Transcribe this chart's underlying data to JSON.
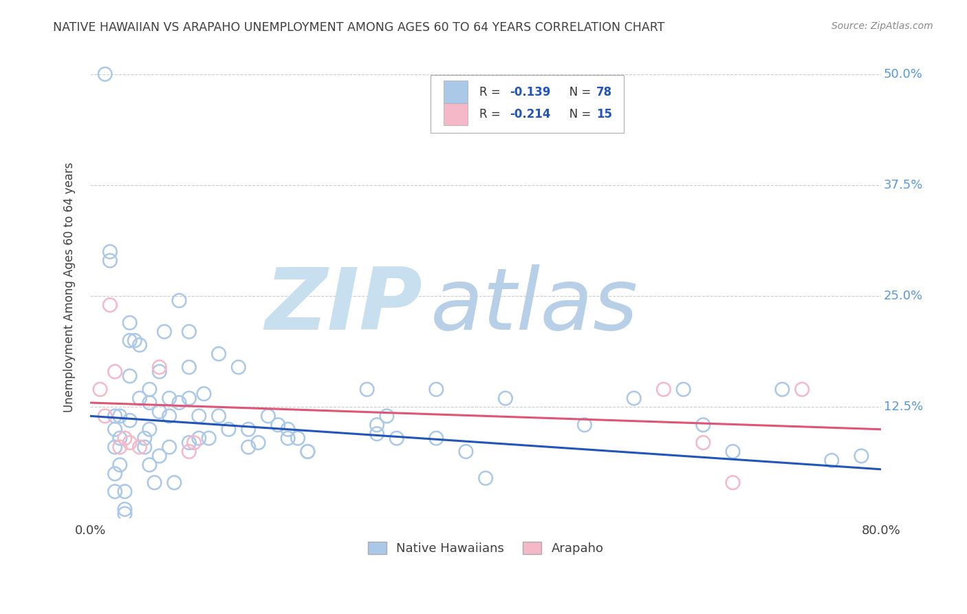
{
  "title": "NATIVE HAWAIIAN VS ARAPAHO UNEMPLOYMENT AMONG AGES 60 TO 64 YEARS CORRELATION CHART",
  "source": "Source: ZipAtlas.com",
  "ylabel": "Unemployment Among Ages 60 to 64 years",
  "watermark_zip": "ZIP",
  "watermark_atlas": "atlas",
  "legend_r_blue": "-0.139",
  "legend_n_blue": "78",
  "legend_r_pink": "-0.214",
  "legend_n_pink": "15",
  "legend_label_blue": "Native Hawaiians",
  "legend_label_pink": "Arapaho",
  "blue_scatter_x": [
    0.015,
    0.02,
    0.02,
    0.025,
    0.025,
    0.025,
    0.025,
    0.025,
    0.03,
    0.03,
    0.03,
    0.035,
    0.035,
    0.035,
    0.04,
    0.04,
    0.04,
    0.04,
    0.045,
    0.05,
    0.05,
    0.055,
    0.055,
    0.06,
    0.06,
    0.06,
    0.06,
    0.065,
    0.07,
    0.07,
    0.07,
    0.075,
    0.08,
    0.08,
    0.08,
    0.085,
    0.09,
    0.09,
    0.1,
    0.1,
    0.1,
    0.1,
    0.11,
    0.11,
    0.115,
    0.12,
    0.13,
    0.13,
    0.14,
    0.15,
    0.16,
    0.16,
    0.17,
    0.18,
    0.19,
    0.2,
    0.2,
    0.21,
    0.22,
    0.22,
    0.28,
    0.29,
    0.29,
    0.3,
    0.31,
    0.35,
    0.35,
    0.38,
    0.4,
    0.42,
    0.5,
    0.55,
    0.6,
    0.62,
    0.65,
    0.7,
    0.75,
    0.78
  ],
  "blue_scatter_y": [
    0.5,
    0.3,
    0.29,
    0.115,
    0.1,
    0.08,
    0.05,
    0.03,
    0.115,
    0.09,
    0.06,
    0.03,
    0.01,
    0.005,
    0.22,
    0.2,
    0.16,
    0.11,
    0.2,
    0.195,
    0.135,
    0.09,
    0.08,
    0.145,
    0.13,
    0.1,
    0.06,
    0.04,
    0.165,
    0.12,
    0.07,
    0.21,
    0.135,
    0.115,
    0.08,
    0.04,
    0.245,
    0.13,
    0.21,
    0.17,
    0.135,
    0.085,
    0.115,
    0.09,
    0.14,
    0.09,
    0.185,
    0.115,
    0.1,
    0.17,
    0.1,
    0.08,
    0.085,
    0.115,
    0.105,
    0.09,
    0.1,
    0.09,
    0.075,
    0.075,
    0.145,
    0.105,
    0.095,
    0.115,
    0.09,
    0.145,
    0.09,
    0.075,
    0.045,
    0.135,
    0.105,
    0.135,
    0.145,
    0.105,
    0.075,
    0.145,
    0.065,
    0.07
  ],
  "pink_scatter_x": [
    0.01,
    0.015,
    0.02,
    0.025,
    0.03,
    0.035,
    0.04,
    0.05,
    0.07,
    0.1,
    0.105,
    0.58,
    0.62,
    0.65,
    0.72
  ],
  "pink_scatter_y": [
    0.145,
    0.115,
    0.24,
    0.165,
    0.08,
    0.09,
    0.085,
    0.08,
    0.17,
    0.075,
    0.085,
    0.145,
    0.085,
    0.04,
    0.145
  ],
  "blue_line_x": [
    0.0,
    0.8
  ],
  "blue_line_y": [
    0.115,
    0.055
  ],
  "pink_line_x": [
    0.0,
    0.8
  ],
  "pink_line_y": [
    0.13,
    0.1
  ],
  "xlim": [
    0.0,
    0.8
  ],
  "ylim": [
    0.0,
    0.52
  ],
  "yticks": [
    0.125,
    0.25,
    0.375,
    0.5
  ],
  "ytick_labels": [
    "12.5%",
    "25.0%",
    "37.5%",
    "50.0%"
  ],
  "background_color": "#ffffff",
  "blue_color": "#aac8e8",
  "pink_color": "#f4b8c8",
  "blue_line_color": "#2255bb",
  "pink_line_color": "#e05575",
  "title_color": "#404040",
  "source_color": "#888888",
  "ytick_color": "#5599dd",
  "xtick_color": "#404040",
  "grid_color": "#cccccc",
  "watermark_zip_color": "#c8dff0",
  "watermark_atlas_color": "#b8cfe8"
}
